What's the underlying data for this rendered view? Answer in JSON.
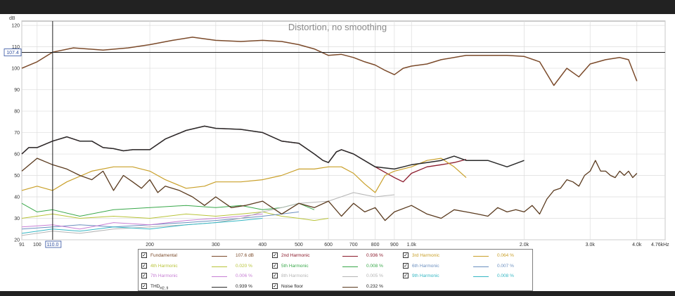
{
  "chart_data": {
    "type": "line",
    "title": "Distortion, no smoothing",
    "ylabel": "dB",
    "xscale": "log",
    "xlim": [
      91,
      4760
    ],
    "ylim": [
      20,
      122
    ],
    "grid": true,
    "yticks": [
      "20",
      "30",
      "40",
      "50",
      "60",
      "70",
      "80",
      "90",
      "100",
      "110",
      "120"
    ],
    "xticks": [
      {
        "v": 91,
        "label": "91"
      },
      {
        "v": 100,
        "label": "100"
      },
      {
        "v": 110,
        "label": "110.0"
      },
      {
        "v": 200,
        "label": "200"
      },
      {
        "v": 300,
        "label": "300"
      },
      {
        "v": 400,
        "label": "400"
      },
      {
        "v": 500,
        "label": "500"
      },
      {
        "v": 600,
        "label": "600"
      },
      {
        "v": 700,
        "label": "700"
      },
      {
        "v": 800,
        "label": "800"
      },
      {
        "v": 900,
        "label": "900"
      },
      {
        "v": 1000,
        "label": "1.0k"
      },
      {
        "v": 2000,
        "label": "2.0k"
      },
      {
        "v": 3000,
        "label": "3.0k"
      },
      {
        "v": 4000,
        "label": "4.0k"
      },
      {
        "v": 4760,
        "label": "4.76kHz"
      }
    ],
    "cursor": {
      "x": 110.0,
      "x_label": "110.0",
      "y": 107.4,
      "y_label": "107.4"
    },
    "series": [
      {
        "name": "Fundamental",
        "color": "#7b4a2a",
        "width": 1.5,
        "x": [
          91,
          100,
          110,
          125,
          150,
          175,
          200,
          230,
          260,
          300,
          350,
          400,
          450,
          500,
          550,
          600,
          650,
          700,
          750,
          800,
          850,
          900,
          950,
          1000,
          1100,
          1200,
          1400,
          1600,
          1800,
          2000,
          2200,
          2400,
          2600,
          2800,
          3000,
          3300,
          3600,
          3800,
          4000
        ],
        "y": [
          100,
          103,
          107.5,
          109.5,
          108.5,
          109.5,
          111,
          113,
          114.5,
          113,
          112.5,
          113,
          112.5,
          111,
          109,
          106,
          106.5,
          105,
          103,
          101.5,
          99,
          97,
          100,
          101,
          102,
          104,
          106,
          106,
          106,
          105.5,
          103,
          92,
          100,
          96,
          102,
          104,
          105,
          104,
          94
        ]
      },
      {
        "name": "2nd Harmonic",
        "color": "#8b1a2b",
        "width": 1.3,
        "x": [
          91,
          95,
          100,
          110,
          120,
          130,
          140,
          150,
          160,
          170,
          180,
          200,
          220,
          250,
          280,
          300,
          350,
          400,
          450,
          500,
          550,
          580,
          600,
          630,
          650,
          700,
          800,
          900,
          950,
          1000,
          1100,
          1200,
          1300,
          1400
        ],
        "y": [
          60,
          63,
          63,
          66,
          68,
          66,
          66,
          63,
          62.5,
          61.5,
          62,
          62,
          67,
          71,
          73,
          72,
          71.5,
          70,
          66,
          65,
          60,
          57,
          56,
          61,
          62,
          60,
          54,
          49,
          47,
          51,
          54,
          55,
          56,
          57.5
        ]
      },
      {
        "name": "3rd Harmonic",
        "color": "#c9a02a",
        "width": 1.2,
        "x": [
          91,
          100,
          110,
          120,
          140,
          160,
          180,
          200,
          220,
          250,
          280,
          300,
          350,
          400,
          450,
          500,
          550,
          600,
          650,
          700,
          750,
          800,
          850,
          900,
          1000,
          1100,
          1200,
          1300,
          1400
        ],
        "y": [
          43,
          45,
          43,
          47,
          52,
          54,
          54,
          52,
          48,
          44,
          45,
          47,
          47,
          48,
          50,
          53,
          53,
          54,
          54,
          51,
          46,
          42,
          50,
          52,
          54,
          57,
          58,
          54,
          49
        ]
      },
      {
        "name": "4th Harmonic",
        "color": "#b9c43a",
        "width": 1,
        "x": [
          91,
          110,
          130,
          160,
          200,
          250,
          300,
          350,
          400,
          450,
          500,
          550,
          600
        ],
        "y": [
          30,
          32,
          30,
          31,
          30,
          32,
          31,
          32,
          33,
          31,
          30,
          29,
          30
        ]
      },
      {
        "name": "5th Harmonic",
        "color": "#39a84a",
        "width": 1,
        "x": [
          91,
          100,
          110,
          130,
          160,
          200,
          250,
          300,
          350,
          400,
          450,
          500,
          550
        ],
        "y": [
          37,
          33,
          34,
          31,
          34,
          35,
          36,
          35,
          36,
          34,
          35,
          37,
          34
        ]
      },
      {
        "name": "6th Harmonic",
        "color": "#6b8fbf",
        "width": 1,
        "x": [
          91,
          110,
          130,
          160,
          200,
          250,
          300,
          350,
          400,
          450,
          500
        ],
        "y": [
          25,
          26,
          27,
          26,
          27,
          28,
          29,
          30,
          31,
          32,
          33
        ]
      },
      {
        "name": "7th Harmonic",
        "color": "#c77fd4",
        "width": 1,
        "x": [
          91,
          110,
          130,
          160,
          200,
          250,
          300,
          350,
          400
        ],
        "y": [
          26,
          27,
          25,
          28,
          27,
          29,
          30,
          31,
          32
        ]
      },
      {
        "name": "8th Harmonic",
        "color": "#b5b5b5",
        "width": 1,
        "x": [
          91,
          110,
          130,
          160,
          200,
          250,
          300,
          350,
          400,
          450,
          500,
          600,
          700,
          800,
          900
        ],
        "y": [
          22,
          24,
          23,
          25,
          26,
          27,
          28,
          30,
          33,
          35,
          37,
          38,
          42,
          40,
          41
        ]
      },
      {
        "name": "9th Harmonic",
        "color": "#35b7c4",
        "width": 1,
        "x": [
          91,
          110,
          130,
          160,
          200,
          250,
          300,
          350,
          400
        ],
        "y": [
          23,
          25,
          24,
          26,
          25,
          27,
          28,
          29,
          30
        ]
      },
      {
        "name": "THDH2..9",
        "color": "#2a2a2a",
        "width": 1.5,
        "x": [
          91,
          95,
          100,
          110,
          120,
          130,
          140,
          150,
          160,
          170,
          180,
          200,
          220,
          250,
          280,
          300,
          350,
          400,
          450,
          500,
          550,
          580,
          600,
          630,
          650,
          700,
          800,
          900,
          950,
          1000,
          1100,
          1200,
          1300,
          1400,
          1600,
          1800,
          2000
        ],
        "y": [
          60,
          63,
          63,
          66,
          68,
          66,
          66,
          63,
          62.5,
          61.5,
          62,
          62,
          67,
          71,
          73,
          72,
          71.5,
          70,
          66,
          65,
          60,
          57,
          56,
          61,
          62,
          60,
          54,
          53,
          54,
          55,
          56,
          57,
          59,
          57,
          57,
          54,
          57
        ]
      },
      {
        "name": "Noise floor",
        "color": "#5a3a1e",
        "width": 1.3,
        "x": [
          91,
          100,
          110,
          120,
          130,
          140,
          150,
          160,
          170,
          180,
          190,
          200,
          210,
          220,
          240,
          260,
          280,
          300,
          330,
          360,
          400,
          450,
          500,
          550,
          600,
          650,
          700,
          750,
          800,
          850,
          900,
          1000,
          1100,
          1200,
          1300,
          1400,
          1500,
          1600,
          1700,
          1800,
          1900,
          2000,
          2100,
          2200,
          2300,
          2400,
          2500,
          2600,
          2700,
          2800,
          2900,
          3000,
          3100,
          3200,
          3300,
          3400,
          3500,
          3600,
          3700,
          3800,
          3900,
          4000
        ],
        "y": [
          52,
          58,
          55,
          53,
          50,
          48,
          52,
          43,
          50,
          47,
          44,
          48,
          42,
          45,
          43,
          40,
          36,
          40,
          35,
          36,
          38,
          32,
          37,
          35,
          38,
          31,
          37,
          33,
          35,
          29,
          33,
          36,
          32,
          30,
          34,
          33,
          32,
          31,
          35,
          33,
          34,
          33,
          36,
          32,
          39,
          43,
          44,
          48,
          47,
          45,
          50,
          52,
          57,
          52,
          52,
          50,
          49,
          52,
          50,
          52,
          49,
          51
        ]
      }
    ]
  },
  "legend": {
    "items": [
      {
        "label": "Fundamental",
        "value": "107.6 dB",
        "color": "#7b4a2a",
        "label_color": "#7b4a2a"
      },
      {
        "label": "2nd Harmonic",
        "value": "0.936 %",
        "color": "#8b1a2b",
        "label_color": "#8b1a2b"
      },
      {
        "label": "3rd Harmonic",
        "value": "0.064 %",
        "color": "#c9a02a",
        "label_color": "#c9a02a"
      },
      {
        "label": "4th Harmonic",
        "value": "0.020 %",
        "color": "#b9c43a",
        "label_color": "#b9c43a"
      },
      {
        "label": "5th Harmonic",
        "value": "0.008 %",
        "color": "#39a84a",
        "label_color": "#39a84a"
      },
      {
        "label": "6th Harmonic",
        "value": "0.007 %",
        "color": "#6b8fbf",
        "label_color": "#6b8fbf"
      },
      {
        "label": "7th Harmonic",
        "value": "0.006 %",
        "color": "#c77fd4",
        "label_color": "#c77fd4"
      },
      {
        "label": "8th Harmonic",
        "value": "0.005 %",
        "color": "#b5b5b5",
        "label_color": "#b5b5b5"
      },
      {
        "label": "9th Harmonic",
        "value": "0.008 %",
        "color": "#35b7c4",
        "label_color": "#35b7c4"
      },
      {
        "label": "THD",
        "sub": "H2..9",
        "value": "0.939 %",
        "color": "#2a2a2a",
        "label_color": "#222222"
      },
      {
        "label": "Noise floor",
        "value": "0.232 %",
        "color": "#5a3a1e",
        "label_color": "#222222"
      }
    ]
  }
}
